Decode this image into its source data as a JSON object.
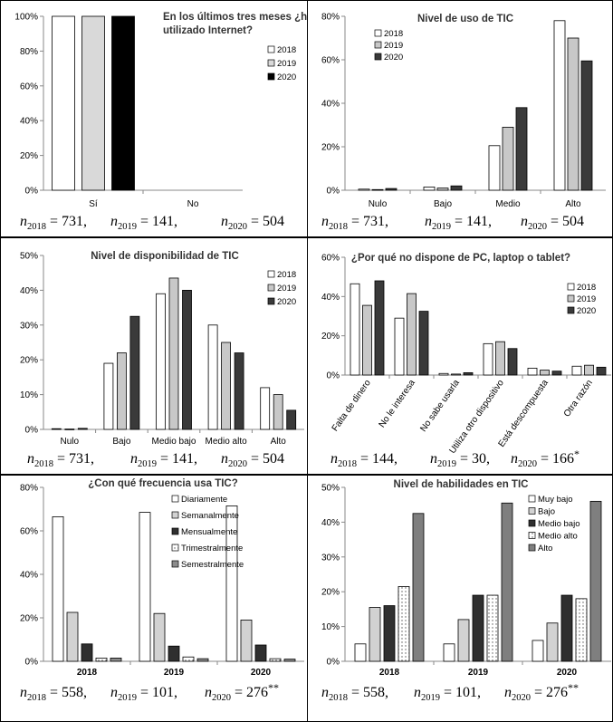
{
  "chart_data": [
    {
      "type": "bar",
      "title": "En los últimos tres meses ¿ha utilizado Internet?",
      "categories": [
        "Sí",
        "No"
      ],
      "series": [
        {
          "name": "2018",
          "values": [
            100,
            0
          ]
        },
        {
          "name": "2019",
          "values": [
            100,
            0
          ]
        },
        {
          "name": "2020",
          "values": [
            100,
            0
          ]
        }
      ],
      "ylim": [
        0,
        100
      ],
      "yticks": [
        "0%",
        "20%",
        "40%",
        "60%",
        "80%",
        "100%"
      ],
      "colors": [
        "#ffffff",
        "#d9d9d9",
        "#000000"
      ],
      "legend_position": "right",
      "sample_sizes": [
        "731",
        "141",
        "504"
      ],
      "sample_suffixes": [
        "",
        "",
        ""
      ]
    },
    {
      "type": "bar",
      "title": "Nivel de uso de TIC",
      "categories": [
        "Nulo",
        "Bajo",
        "Medio",
        "Alto"
      ],
      "series": [
        {
          "name": "2018",
          "values": [
            0.5,
            1.5,
            20.5,
            78
          ]
        },
        {
          "name": "2019",
          "values": [
            0.3,
            1,
            29,
            70
          ]
        },
        {
          "name": "2020",
          "values": [
            0.8,
            2,
            38,
            59.5
          ]
        }
      ],
      "ylim": [
        0,
        80
      ],
      "yticks": [
        "0%",
        "20%",
        "40%",
        "60%",
        "80%"
      ],
      "colors": [
        "#ffffff",
        "#c8c8c8",
        "#3a3a3a"
      ],
      "legend_position": "top-left",
      "sample_sizes": [
        "731",
        "141",
        "504"
      ],
      "sample_suffixes": [
        "",
        "",
        ""
      ]
    },
    {
      "type": "bar",
      "title": "Nivel de disponibilidad de TIC",
      "categories": [
        "Nulo",
        "Bajo",
        "Medio bajo",
        "Medio alto",
        "Alto"
      ],
      "series": [
        {
          "name": "2018",
          "values": [
            0.2,
            19,
            39,
            30,
            12
          ]
        },
        {
          "name": "2019",
          "values": [
            0.1,
            22,
            43.5,
            25,
            10
          ]
        },
        {
          "name": "2020",
          "values": [
            0.3,
            32.5,
            40,
            22,
            5.5
          ]
        }
      ],
      "ylim": [
        0,
        50
      ],
      "yticks": [
        "0%",
        "10%",
        "20%",
        "30%",
        "40%",
        "50%"
      ],
      "colors": [
        "#ffffff",
        "#c8c8c8",
        "#3a3a3a"
      ],
      "legend_position": "top-right",
      "sample_sizes": [
        "731",
        "141",
        "504"
      ],
      "sample_suffixes": [
        "",
        "",
        ""
      ]
    },
    {
      "type": "bar",
      "title": "¿Por qué no dispone de PC, laptop o tablet?",
      "categories": [
        "Falta de dinero",
        "No le interesa",
        "No sabe usarla",
        "Utiliza otro dispositivo",
        "Está descompuesta",
        "Otra razón"
      ],
      "series": [
        {
          "name": "2018",
          "values": [
            46.5,
            29,
            0.8,
            16,
            3.5,
            4.5
          ]
        },
        {
          "name": "2019",
          "values": [
            35.5,
            41.5,
            0.5,
            17,
            2.5,
            5
          ]
        },
        {
          "name": "2020",
          "values": [
            48,
            32.5,
            1.2,
            13.5,
            2,
            4
          ]
        }
      ],
      "ylim": [
        0,
        60
      ],
      "yticks": [
        "0%",
        "20%",
        "40%",
        "60%"
      ],
      "colors": [
        "#ffffff",
        "#c8c8c8",
        "#3a3a3a"
      ],
      "legend_position": "right",
      "sample_sizes": [
        "144",
        "30",
        "166"
      ],
      "sample_suffixes": [
        "",
        "",
        "*"
      ]
    },
    {
      "type": "bar",
      "title": "¿Con qué frecuencia usa TIC?",
      "categories": [
        "2018",
        "2019",
        "2020"
      ],
      "series": [
        {
          "name": "Diariamente",
          "values": [
            66.5,
            68.5,
            71.5
          ]
        },
        {
          "name": "Semanalmente",
          "values": [
            22.5,
            22,
            19
          ]
        },
        {
          "name": "Mensualmente",
          "values": [
            8,
            7,
            7.5
          ]
        },
        {
          "name": "Trimestralmente",
          "values": [
            1.5,
            2,
            1.2
          ]
        },
        {
          "name": "Semestralmente",
          "values": [
            1.5,
            1.2,
            1
          ]
        }
      ],
      "ylim": [
        0,
        80
      ],
      "yticks": [
        "0%",
        "20%",
        "40%",
        "60%",
        "80%"
      ],
      "colors": [
        "#ffffff",
        "#d2d2d2",
        "#2f2f2f",
        "#ffffff",
        "#8c8c8c"
      ],
      "legend_position": "top-center",
      "sample_sizes": [
        "558",
        "101",
        "276"
      ],
      "sample_suffixes": [
        "",
        "",
        "**"
      ]
    },
    {
      "type": "bar",
      "title": "Nivel de habilidades en TIC",
      "categories": [
        "2018",
        "2019",
        "2020"
      ],
      "series": [
        {
          "name": "Muy bajo",
          "values": [
            5,
            5,
            6
          ]
        },
        {
          "name": "Bajo",
          "values": [
            15.5,
            12,
            11
          ]
        },
        {
          "name": "Medio bajo",
          "values": [
            16,
            19,
            19
          ]
        },
        {
          "name": "Medio alto",
          "values": [
            21.5,
            19,
            18
          ]
        },
        {
          "name": "Alto",
          "values": [
            42.5,
            45.5,
            46
          ]
        }
      ],
      "ylim": [
        0,
        50
      ],
      "yticks": [
        "0%",
        "10%",
        "20%",
        "30%",
        "40%",
        "50%"
      ],
      "colors": [
        "#ffffff",
        "#d2d2d2",
        "#2f2f2f",
        "#ffffff",
        "#7f7f7f"
      ],
      "legend_position": "top-center",
      "sample_sizes": [
        "558",
        "101",
        "276"
      ],
      "sample_suffixes": [
        "",
        "",
        "**"
      ]
    }
  ]
}
